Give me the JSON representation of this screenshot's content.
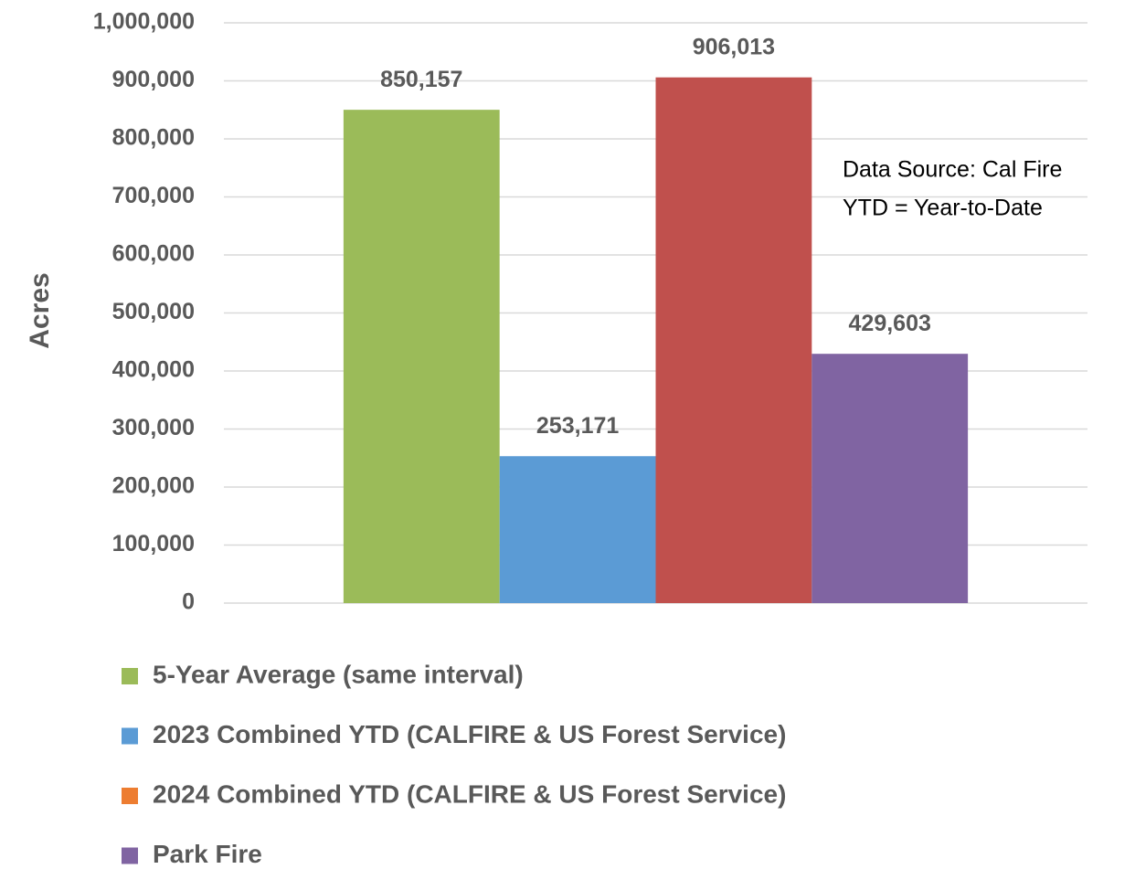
{
  "chart_data": {
    "type": "bar",
    "ylabel": "Acres",
    "categories": [
      null
    ],
    "series": [
      {
        "name": "5-Year Average (same interval)",
        "color": "#9BBB59",
        "legend_color": "#9BBB59",
        "values": [
          850157
        ],
        "value_labels": [
          "850,157"
        ]
      },
      {
        "name": "2023 Combined YTD (CALFIRE & US Forest Service)",
        "color": "#5B9BD5",
        "legend_color": "#5B9BD5",
        "values": [
          253171
        ],
        "value_labels": [
          "253,171"
        ]
      },
      {
        "name": "2024 Combined YTD (CALFIRE & US Forest Service)",
        "color": "#C0504D",
        "legend_color": "#ED7D31",
        "values": [
          906013
        ],
        "value_labels": [
          "906,013"
        ]
      },
      {
        "name": "Park Fire",
        "color": "#8064A2",
        "legend_color": "#8064A2",
        "values": [
          429603
        ],
        "value_labels": [
          "429,603"
        ]
      }
    ],
    "ylim": [
      0,
      1000000
    ],
    "yticks": [
      0,
      {
        "value": 100000,
        "label": "100,000"
      },
      {
        "value": 200000,
        "label": "200,000"
      },
      {
        "value": 300000,
        "label": "300,000"
      },
      {
        "value": 400000,
        "label": "400,000"
      },
      {
        "value": 500000,
        "label": "500,000"
      },
      {
        "value": 600000,
        "label": "600,000"
      },
      {
        "value": 700000,
        "label": "700,000"
      },
      {
        "value": 800000,
        "label": "800,000"
      },
      {
        "value": 900000,
        "label": "900,000"
      },
      {
        "value": 1000000,
        "label": "1,000,000"
      }
    ],
    "grid": true,
    "legend": "bottom",
    "annotations": [
      "Data Source: Cal Fire",
      "YTD = Year-to-Date"
    ]
  }
}
